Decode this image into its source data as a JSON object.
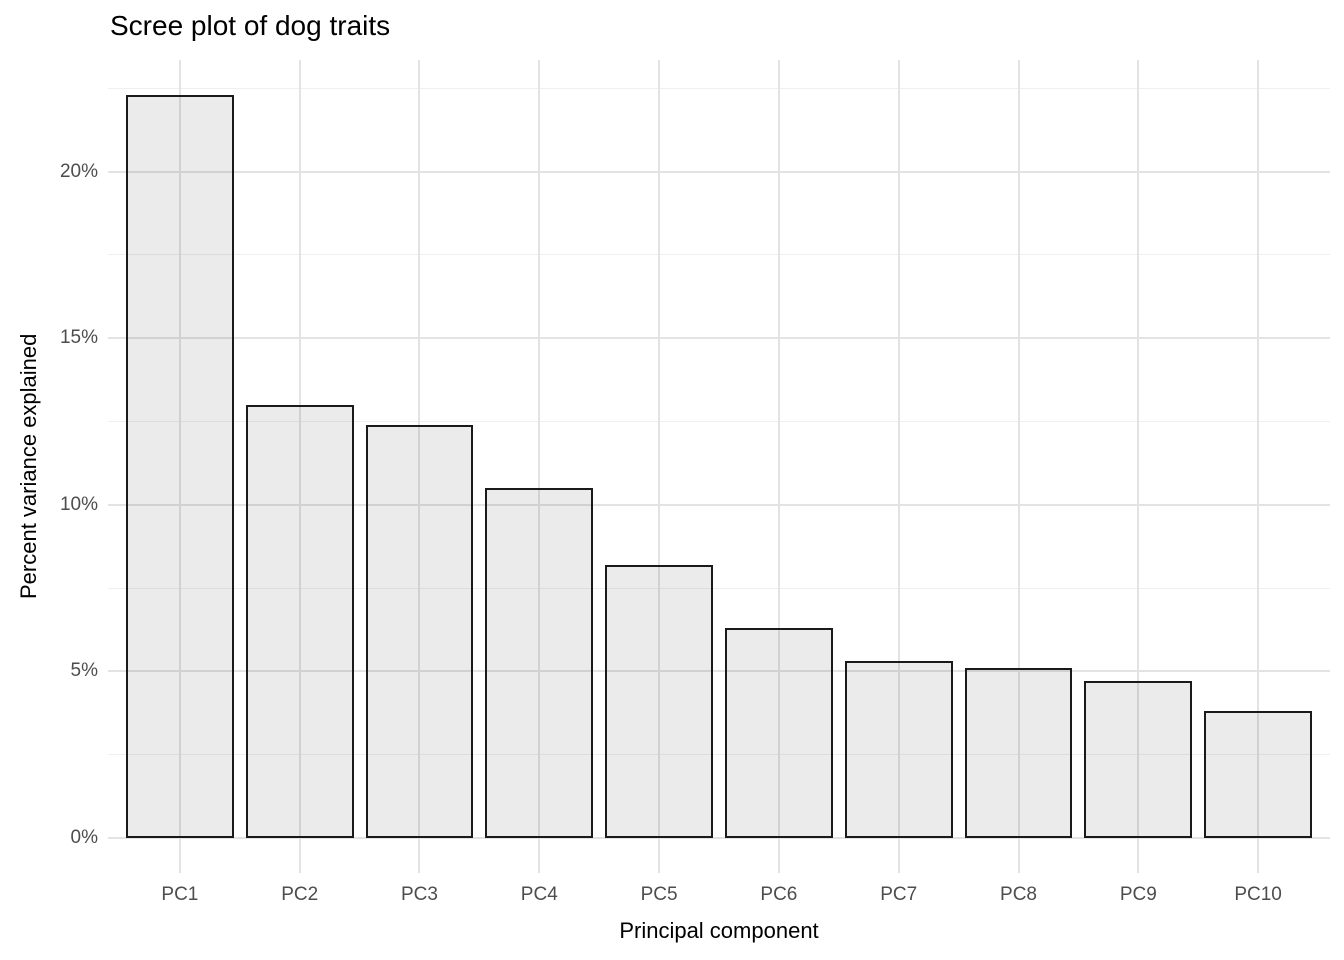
{
  "chart_data": {
    "type": "bar",
    "title": "Scree plot of dog traits",
    "xlabel": "Principal component",
    "ylabel": "Percent variance explained",
    "categories": [
      "PC1",
      "PC2",
      "PC3",
      "PC4",
      "PC5",
      "PC6",
      "PC7",
      "PC8",
      "PC9",
      "PC10"
    ],
    "values": [
      22.3,
      13.0,
      12.4,
      10.5,
      8.2,
      6.3,
      5.3,
      5.1,
      4.7,
      3.8
    ],
    "y_tick_values": [
      0,
      5,
      10,
      15,
      20
    ],
    "y_tick_labels": [
      "0%",
      "5%",
      "10%",
      "15%",
      "20%"
    ],
    "ylim": [
      -1.05,
      23.35
    ],
    "grid": "major and minor horizontal gridlines, vertical gridline at each bar center",
    "legend": "none",
    "colors": {
      "bar_fill": "#ebebeb",
      "bar_border": "#1a1a1a",
      "grid_major": "#e3e3e3",
      "grid_minor": "#efefef",
      "tick_text": "#4d4d4d",
      "title_text": "#000000",
      "background": "#ffffff"
    }
  }
}
